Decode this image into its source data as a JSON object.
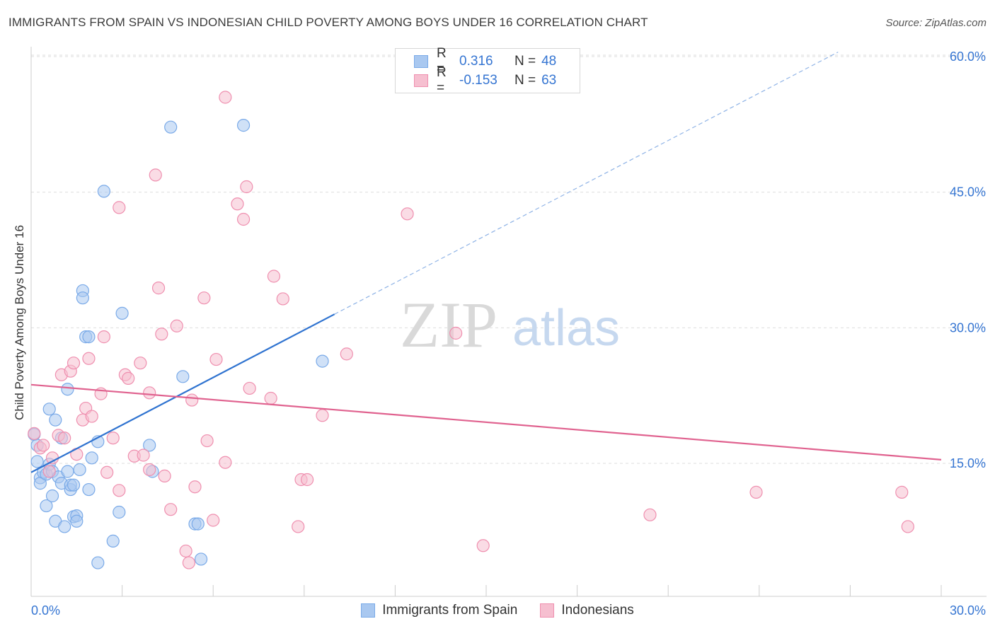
{
  "title": "IMMIGRANTS FROM SPAIN VS INDONESIAN CHILD POVERTY AMONG BOYS UNDER 16 CORRELATION CHART",
  "source": "Source: ZipAtlas.com",
  "watermark": {
    "zip": "ZIP",
    "atlas": "atlas"
  },
  "legend": {
    "r_label": "R =",
    "n_label": "N =",
    "series": [
      {
        "r": "0.316",
        "n": "48"
      },
      {
        "r": "-0.153",
        "n": "63"
      }
    ]
  },
  "chart_data": {
    "type": "scatter",
    "title": "IMMIGRANTS FROM SPAIN VS INDONESIAN CHILD POVERTY AMONG BOYS UNDER 16 CORRELATION CHART",
    "xlabel": "",
    "ylabel": "Child Poverty Among Boys Under 16",
    "xlim": [
      0,
      30
    ],
    "ylim": [
      0,
      62
    ],
    "x_tick_labels": [
      "0.0%",
      "30.0%"
    ],
    "y_ticks": [
      15,
      30,
      45,
      60
    ],
    "y_tick_labels": [
      "15.0%",
      "30.0%",
      "45.0%",
      "60.0%"
    ],
    "grid": true,
    "series": [
      {
        "name": "Immigrants from Spain",
        "color": "#7aaae8",
        "fill": "#a9c8f0",
        "points": [
          [
            0.1,
            18.2
          ],
          [
            0.2,
            17.0
          ],
          [
            0.2,
            15.2
          ],
          [
            0.3,
            13.4
          ],
          [
            0.3,
            12.8
          ],
          [
            0.4,
            14.0
          ],
          [
            0.5,
            10.3
          ],
          [
            0.5,
            13.8
          ],
          [
            0.6,
            21.0
          ],
          [
            0.6,
            14.9
          ],
          [
            0.7,
            14.1
          ],
          [
            0.7,
            11.4
          ],
          [
            0.8,
            19.8
          ],
          [
            0.8,
            8.6
          ],
          [
            0.9,
            13.5
          ],
          [
            1.0,
            17.8
          ],
          [
            1.0,
            12.8
          ],
          [
            1.1,
            8.0
          ],
          [
            1.2,
            14.1
          ],
          [
            1.2,
            23.2
          ],
          [
            1.3,
            12.1
          ],
          [
            1.3,
            12.6
          ],
          [
            1.4,
            12.6
          ],
          [
            1.4,
            9.1
          ],
          [
            1.5,
            9.2
          ],
          [
            1.5,
            8.6
          ],
          [
            1.6,
            14.3
          ],
          [
            1.7,
            34.1
          ],
          [
            1.7,
            33.3
          ],
          [
            1.8,
            29.0
          ],
          [
            1.9,
            29.0
          ],
          [
            1.9,
            12.1
          ],
          [
            2.0,
            15.6
          ],
          [
            2.2,
            17.4
          ],
          [
            2.2,
            4.0
          ],
          [
            2.4,
            45.1
          ],
          [
            2.7,
            6.4
          ],
          [
            2.9,
            9.6
          ],
          [
            3.0,
            31.6
          ],
          [
            3.9,
            17.0
          ],
          [
            4.0,
            14.1
          ],
          [
            4.6,
            52.2
          ],
          [
            5.0,
            24.6
          ],
          [
            5.4,
            8.3
          ],
          [
            5.5,
            8.3
          ],
          [
            5.6,
            4.4
          ],
          [
            7.0,
            52.4
          ],
          [
            9.6,
            26.3
          ]
        ],
        "trend": {
          "x": [
            0,
            10
          ],
          "y": [
            14.0,
            31.5
          ]
        },
        "trend_extended": {
          "x": [
            10,
            26.6
          ],
          "y": [
            31.5,
            60.5
          ]
        }
      },
      {
        "name": "Indonesians",
        "color": "#ef8faf",
        "fill": "#f6bfd0",
        "points": [
          [
            0.1,
            18.3
          ],
          [
            0.3,
            16.7
          ],
          [
            0.4,
            17.0
          ],
          [
            0.6,
            14.1
          ],
          [
            0.7,
            15.6
          ],
          [
            0.9,
            18.1
          ],
          [
            1.0,
            24.8
          ],
          [
            1.1,
            17.8
          ],
          [
            1.3,
            25.2
          ],
          [
            1.4,
            26.1
          ],
          [
            1.5,
            16.0
          ],
          [
            1.7,
            19.8
          ],
          [
            1.8,
            21.1
          ],
          [
            1.9,
            26.6
          ],
          [
            2.0,
            20.2
          ],
          [
            2.3,
            22.7
          ],
          [
            2.4,
            29.0
          ],
          [
            2.5,
            14.0
          ],
          [
            2.7,
            17.8
          ],
          [
            2.9,
            12.0
          ],
          [
            2.9,
            43.3
          ],
          [
            3.1,
            24.8
          ],
          [
            3.2,
            24.4
          ],
          [
            3.4,
            15.8
          ],
          [
            3.6,
            26.1
          ],
          [
            3.7,
            15.9
          ],
          [
            3.9,
            22.8
          ],
          [
            3.9,
            14.3
          ],
          [
            4.1,
            46.9
          ],
          [
            4.2,
            34.4
          ],
          [
            4.3,
            29.3
          ],
          [
            4.4,
            13.6
          ],
          [
            4.6,
            9.9
          ],
          [
            4.8,
            30.2
          ],
          [
            5.1,
            5.3
          ],
          [
            5.2,
            4.0
          ],
          [
            5.3,
            22.0
          ],
          [
            5.4,
            12.4
          ],
          [
            5.7,
            33.3
          ],
          [
            5.8,
            17.5
          ],
          [
            6.0,
            8.7
          ],
          [
            6.1,
            26.5
          ],
          [
            6.4,
            15.1
          ],
          [
            6.4,
            55.5
          ],
          [
            6.8,
            43.7
          ],
          [
            7.0,
            42.0
          ],
          [
            7.1,
            45.6
          ],
          [
            7.2,
            23.3
          ],
          [
            7.9,
            22.2
          ],
          [
            8.0,
            35.7
          ],
          [
            8.3,
            33.2
          ],
          [
            8.8,
            8.0
          ],
          [
            8.9,
            13.2
          ],
          [
            9.1,
            13.2
          ],
          [
            9.6,
            20.3
          ],
          [
            10.4,
            27.1
          ],
          [
            12.4,
            42.6
          ],
          [
            14.0,
            29.4
          ],
          [
            14.9,
            5.9
          ],
          [
            20.4,
            9.3
          ],
          [
            23.9,
            11.8
          ],
          [
            28.7,
            11.8
          ],
          [
            28.9,
            8.0
          ]
        ],
        "trend": {
          "x": [
            0,
            30
          ],
          "y": [
            23.7,
            15.4
          ]
        }
      }
    ],
    "legend_items": [
      "Immigrants from Spain",
      "Indonesians"
    ]
  }
}
